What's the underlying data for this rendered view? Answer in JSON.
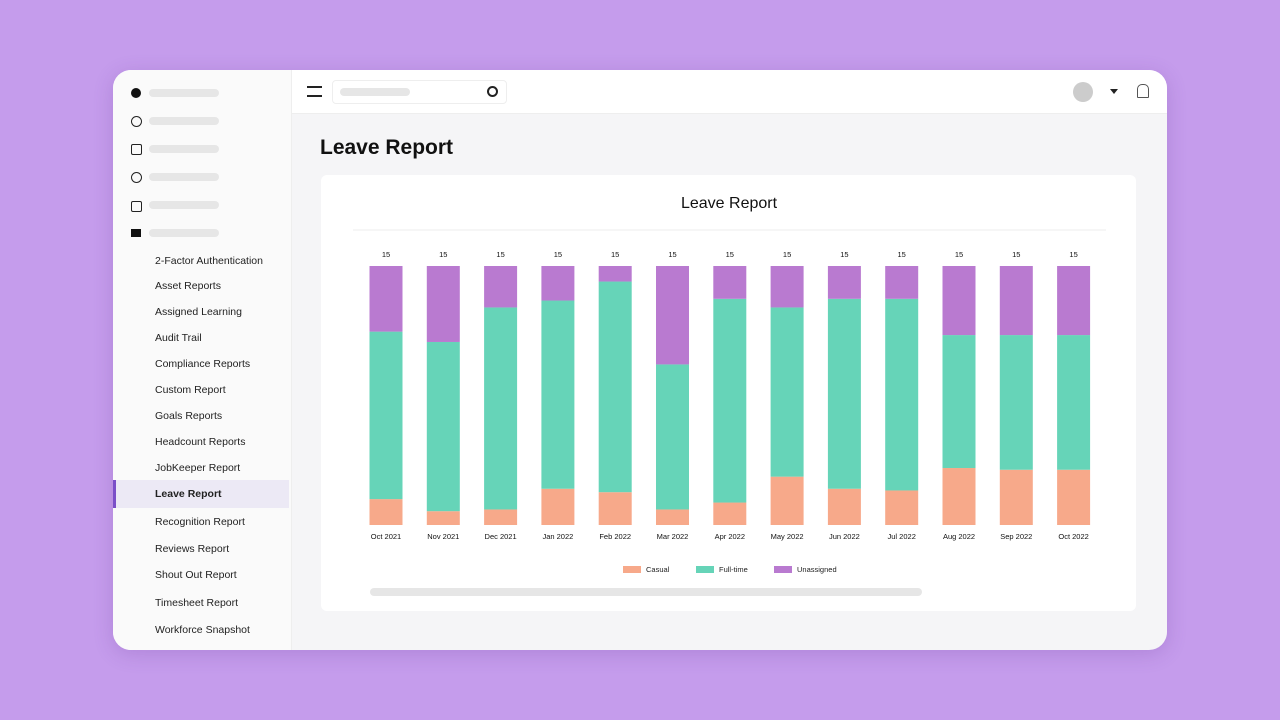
{
  "page": {
    "title": "Leave Report"
  },
  "sidebar": {
    "items": [
      "2-Factor Authentication",
      "Asset Reports",
      "Assigned Learning",
      "Audit Trail",
      "Compliance Reports",
      "Custom Report",
      "Goals Reports",
      "Headcount Reports",
      "JobKeeper Report",
      "Leave Report",
      "Recognition Report",
      "Reviews Report",
      "Shout Out Report",
      "Timesheet Report",
      "Workforce Snapshot"
    ],
    "active": 9
  },
  "chart_data": {
    "type": "stacked-bar",
    "title": "Leave Report",
    "categories": [
      "Oct 2021",
      "Nov 2021",
      "Dec 2021",
      "Jan 2022",
      "Feb 2022",
      "Mar 2022",
      "Apr 2022",
      "May 2022",
      "Jun 2022",
      "Jul 2022",
      "Aug 2022",
      "Sep 2022",
      "Oct 2022"
    ],
    "totals": [
      15,
      15,
      15,
      15,
      15,
      15,
      15,
      15,
      15,
      15,
      15,
      15,
      15
    ],
    "series": [
      {
        "name": "Casual",
        "color": "#f7a98a",
        "values": [
          1.5,
          0.8,
          0.9,
          2.1,
          1.9,
          0.9,
          1.3,
          2.8,
          2.1,
          2.0,
          3.3,
          3.2,
          3.2
        ]
      },
      {
        "name": "Full-time",
        "color": "#66d4b8",
        "values": [
          9.7,
          9.8,
          11.7,
          10.9,
          12.2,
          8.4,
          11.8,
          9.8,
          11.0,
          11.1,
          7.7,
          7.8,
          7.8
        ]
      },
      {
        "name": "Unassigned",
        "color": "#b97ad0",
        "values": [
          3.8,
          4.4,
          2.4,
          2.0,
          0.9,
          5.7,
          1.9,
          2.4,
          1.9,
          1.9,
          4.0,
          4.0,
          4.0
        ]
      }
    ],
    "ylim": [
      0,
      15
    ],
    "legend": "bottom"
  }
}
